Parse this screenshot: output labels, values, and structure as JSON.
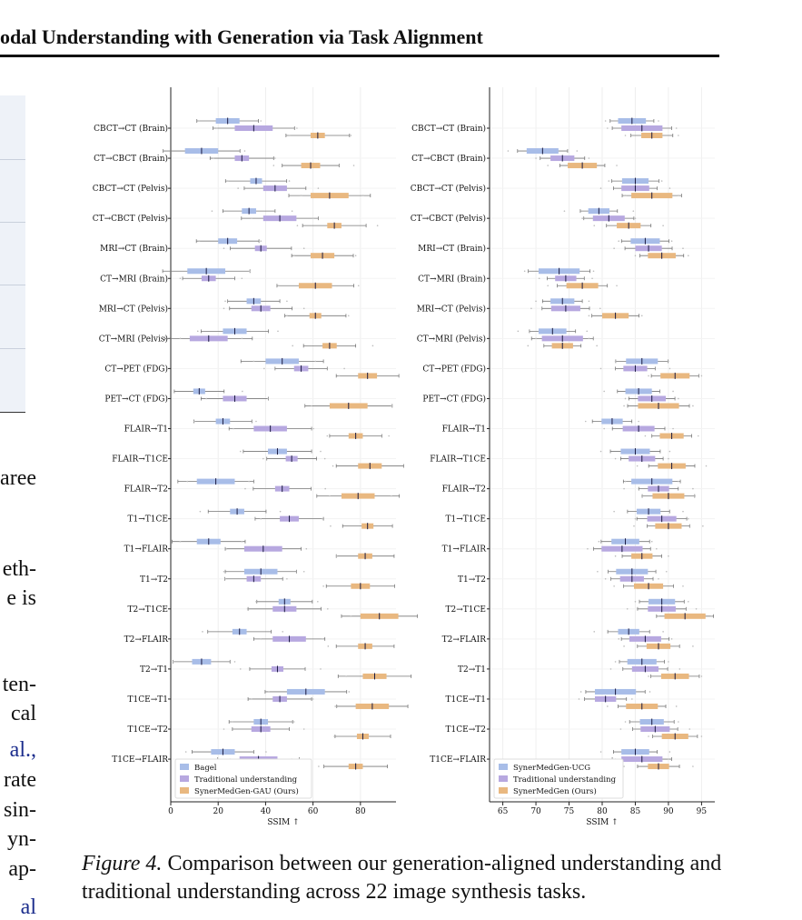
{
  "header": {
    "title": "odal Understanding with Generation via Task Alignment"
  },
  "left_fragments": [
    "aree",
    "eth-",
    "e is",
    "ten-",
    "cal",
    "al.,",
    "rate",
    "sin-",
    "yn-",
    "ap-",
    "al"
  ],
  "caption": {
    "label": "Figure 4.",
    "text": "Comparison between our generation-aligned understanding and traditional understanding across 22 image synthesis tasks."
  },
  "colors": {
    "blue": "#a8bde8",
    "purple": "#b7a8e0",
    "orange": "#e9b880"
  },
  "chart_data": [
    {
      "type": "box",
      "xlabel": "SSIM ↑",
      "xlim": [
        0,
        95
      ],
      "xticks": [
        0,
        20,
        40,
        60,
        80
      ],
      "grid": true,
      "legend": {
        "position": "bottom-left",
        "entries": [
          "Bagel",
          "Traditional understanding",
          "SynerMedGen-GAU (Ours)"
        ]
      },
      "categories": [
        "CBCT→CT (Brain)",
        "CT→CBCT (Brain)",
        "CBCT→CT (Pelvis)",
        "CT→CBCT (Pelvis)",
        "MRI→CT (Brain)",
        "CT→MRI (Brain)",
        "MRI→CT (Pelvis)",
        "CT→MRI (Pelvis)",
        "CT→PET (FDG)",
        "PET→CT (FDG)",
        "FLAIR→T1",
        "FLAIR→T1CE",
        "FLAIR→T2",
        "T1→T1CE",
        "T1→FLAIR",
        "T1→T2",
        "T2→T1CE",
        "T2→FLAIR",
        "T2→T1",
        "T1CE→T1",
        "T1CE→T2",
        "T1CE→FLAIR"
      ],
      "series": [
        {
          "name": "Bagel",
          "color": "blue",
          "medians": [
            24,
            13,
            36,
            33,
            24,
            15,
            35,
            27,
            47,
            12,
            22,
            45,
            19,
            28,
            16,
            38,
            48,
            29,
            13,
            57,
            38,
            22
          ]
        },
        {
          "name": "Traditional understanding",
          "color": "purple",
          "medians": [
            35,
            30,
            44,
            46,
            38,
            16,
            38,
            16,
            55,
            27,
            42,
            51,
            47,
            50,
            39,
            35,
            48,
            50,
            45,
            46,
            38,
            37
          ]
        },
        {
          "name": "SynerMedGen-GAU (Ours)",
          "color": "orange",
          "medians": [
            62,
            59,
            67,
            69,
            64,
            61,
            61,
            67,
            83,
            75,
            78,
            84,
            79,
            83,
            82,
            80,
            88,
            82,
            86,
            85,
            81,
            78
          ]
        }
      ]
    },
    {
      "type": "box",
      "xlabel": "SSIM ↑",
      "xlim": [
        63,
        97
      ],
      "xticks": [
        65,
        70,
        75,
        80,
        85,
        90,
        95
      ],
      "grid": true,
      "legend": {
        "position": "bottom-left",
        "entries": [
          "SynerMedGen-UCG",
          "Traditional understanding",
          "SynerMedGen (Ours)"
        ]
      },
      "categories": [
        "CBCT→CT (Brain)",
        "CT→CBCT (Brain)",
        "CBCT→CT (Pelvis)",
        "CT→CBCT (Pelvis)",
        "MRI→CT (Brain)",
        "CT→MRI (Brain)",
        "MRI→CT (Pelvis)",
        "CT→MRI (Pelvis)",
        "CT→PET (FDG)",
        "PET→CT (FDG)",
        "FLAIR→T1",
        "FLAIR→T1CE",
        "FLAIR→T2",
        "T1→T1CE",
        "T1→FLAIR",
        "T1→T2",
        "T2→T1CE",
        "T2→FLAIR",
        "T2→T1",
        "T1CE→T1",
        "T1CE→T2",
        "T1CE→FLAIR"
      ],
      "series": [
        {
          "name": "SynerMedGen-UCG",
          "color": "blue",
          "medians": [
            84.5,
            71,
            85,
            79.5,
            86.5,
            73.5,
            74,
            72.5,
            86,
            85.5,
            81.5,
            85,
            87.5,
            87,
            83.5,
            84.5,
            89,
            84,
            86,
            82,
            87.5,
            85
          ]
        },
        {
          "name": "Traditional understanding",
          "color": "purple",
          "medians": [
            86,
            74,
            85,
            81,
            87,
            74.5,
            74.5,
            74,
            85,
            87.5,
            85.5,
            86,
            88.5,
            89,
            83,
            84.5,
            89,
            86.5,
            86.5,
            80.5,
            88,
            86
          ]
        },
        {
          "name": "SynerMedGen (Ours)",
          "color": "orange",
          "medians": [
            87.5,
            77,
            87.5,
            84,
            89,
            77,
            82,
            74,
            91,
            88.5,
            90.5,
            90.5,
            90,
            90,
            86,
            87,
            92.5,
            88.5,
            91,
            86,
            91,
            88.5
          ]
        }
      ]
    }
  ]
}
